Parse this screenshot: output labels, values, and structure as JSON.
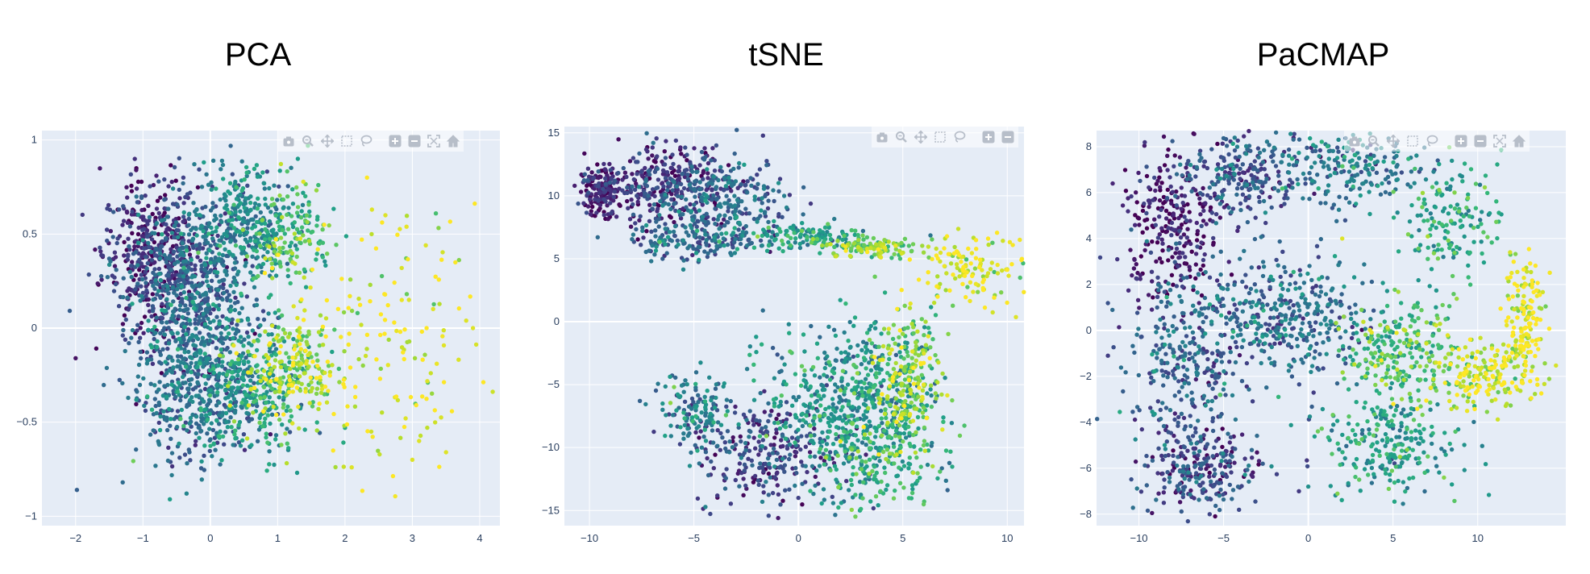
{
  "chart_data": [
    {
      "type": "scatter",
      "title": "PCA",
      "xlim": [
        -2.5,
        4.3
      ],
      "ylim": [
        -1.05,
        1.05
      ],
      "xticks": [
        -2,
        -1,
        0,
        1,
        2,
        3,
        4
      ],
      "xtick_labels": [
        "−2",
        "−1",
        "0",
        "1",
        "2",
        "3",
        "4"
      ],
      "yticks": [
        -1,
        -0.5,
        0,
        0.5,
        1
      ],
      "ytick_labels": [
        "−1",
        "−0.5",
        "0",
        "0.5",
        "1"
      ],
      "colorscale": "Viridis",
      "grid": true,
      "marker_size_px": 5,
      "point_count": 2600,
      "points": [
        [
          -1.1,
          0.84,
          0.05
        ],
        [
          -0.8,
          0.81,
          0.1
        ],
        [
          -0.4,
          0.8,
          0.2
        ],
        [
          1.3,
          0.9,
          0.55
        ],
        [
          1.45,
          0.97,
          0.7
        ],
        [
          -2.0,
          -0.16,
          0.05
        ],
        [
          -1.98,
          -0.86,
          0.3
        ],
        [
          -0.6,
          -0.91,
          0.55
        ],
        [
          -1.3,
          -0.82,
          0.35
        ],
        [
          2.1,
          -0.74,
          0.95
        ],
        [
          2.0,
          -0.53,
          0.6
        ],
        [
          2.9,
          -0.48,
          0.95
        ],
        [
          3.1,
          -0.6,
          0.95
        ],
        [
          3.5,
          -0.66,
          0.95
        ],
        [
          3.9,
          0.0,
          0.95
        ],
        [
          3.8,
          0.04,
          0.95
        ],
        [
          3.35,
          0.61,
          0.7
        ],
        [
          3.2,
          0.44,
          0.95
        ],
        [
          2.6,
          0.6,
          0.95
        ],
        [
          2.4,
          0.63,
          0.95
        ],
        [
          2.95,
          0.15,
          0.95
        ],
        [
          3.0,
          -0.7,
          0.95
        ],
        [
          0.25,
          0.16,
          0.3
        ],
        [
          -0.3,
          -0.3,
          0.4
        ],
        [
          0.6,
          0.7,
          0.5
        ]
      ]
    },
    {
      "type": "scatter",
      "title": "tSNE",
      "xlim": [
        -11.2,
        10.8
      ],
      "ylim": [
        -16.2,
        15.5
      ],
      "xticks": [
        -10,
        -5,
        0,
        5,
        10
      ],
      "xtick_labels": [
        "−10",
        "−5",
        "0",
        "5",
        "10"
      ],
      "yticks": [
        -15,
        -10,
        -5,
        0,
        5,
        10,
        15
      ],
      "ytick_labels": [
        "−15",
        "−10",
        "−5",
        "0",
        "5",
        "10",
        "15"
      ],
      "colorscale": "Viridis",
      "grid": true,
      "marker_size_px": 5,
      "point_count": 2600,
      "points": [
        [
          -10.0,
          11.0,
          0.02
        ],
        [
          -7.0,
          13.2,
          0.05
        ],
        [
          -4.0,
          12.0,
          0.2
        ],
        [
          -6.5,
          5.0,
          0.3
        ],
        [
          1.0,
          6.5,
          0.6
        ],
        [
          3.5,
          6.0,
          0.8
        ],
        [
          6.0,
          5.5,
          0.85
        ],
        [
          10.6,
          6.5,
          0.98
        ],
        [
          8.5,
          3.0,
          0.97
        ],
        [
          6.5,
          1.5,
          0.9
        ],
        [
          -6.5,
          -7.0,
          0.45
        ],
        [
          -5.5,
          -5.0,
          0.35
        ],
        [
          -1.0,
          -13.0,
          0.1
        ],
        [
          0.0,
          -14.0,
          0.2
        ],
        [
          6.0,
          -14.5,
          0.75
        ],
        [
          6.0,
          -5.0,
          0.97
        ],
        [
          2.5,
          -2.0,
          0.5
        ],
        [
          4.0,
          -3.0,
          0.65
        ],
        [
          -2.5,
          -10.0,
          0.15
        ],
        [
          5.5,
          -12.0,
          0.9
        ]
      ]
    },
    {
      "type": "scatter",
      "title": "PaCMAP",
      "xlim": [
        -12.5,
        15.2
      ],
      "ylim": [
        -8.5,
        8.7
      ],
      "xticks": [
        -10,
        -5,
        0,
        5,
        10
      ],
      "xtick_labels": [
        "−10",
        "−5",
        "0",
        "5",
        "10"
      ],
      "yticks": [
        -8,
        -6,
        -4,
        -2,
        0,
        2,
        4,
        6,
        8
      ],
      "ytick_labels": [
        "−8",
        "−6",
        "−4",
        "−2",
        "0",
        "2",
        "4",
        "6",
        "8"
      ],
      "colorscale": "Viridis",
      "grid": true,
      "marker_size_px": 5,
      "point_count": 2600,
      "points": [
        [
          -10.5,
          3.5,
          0.05
        ],
        [
          -8.0,
          5.0,
          0.05
        ],
        [
          -5.0,
          7.5,
          0.2
        ],
        [
          -2.0,
          7.9,
          0.3
        ],
        [
          3.0,
          7.5,
          0.45
        ],
        [
          9.0,
          4.5,
          0.6
        ],
        [
          12.0,
          2.5,
          0.97
        ],
        [
          13.5,
          1.5,
          0.97
        ],
        [
          12.5,
          -0.8,
          0.97
        ],
        [
          9.5,
          -2.5,
          0.95
        ],
        [
          5.0,
          -5.5,
          0.55
        ],
        [
          -4.5,
          -5.5,
          0.35
        ],
        [
          -8.5,
          -6.5,
          0.2
        ],
        [
          -6.0,
          -7.3,
          0.35
        ],
        [
          0.0,
          -6.8,
          0.5
        ],
        [
          3.0,
          -6.5,
          0.75
        ],
        [
          4.0,
          -0.5,
          0.6
        ],
        [
          -2.0,
          1.0,
          0.35
        ],
        [
          -7.0,
          -1.0,
          0.25
        ],
        [
          2.0,
          4.0,
          0.95
        ]
      ]
    }
  ],
  "colors": {
    "plot_bg": "#e5ecf6",
    "grid": "#ffffff",
    "tick_text": "#2a3f5f",
    "modebar_icon": "#b7bec9",
    "viridis_stops": [
      "#440154",
      "#482878",
      "#3e4989",
      "#31688e",
      "#26828e",
      "#1f9e89",
      "#35b779",
      "#6ece58",
      "#b5de2b",
      "#fde725"
    ]
  },
  "modebar_icons": [
    "camera-icon",
    "zoom-icon",
    "pan-icon",
    "box-select-icon",
    "lasso-select-icon",
    "zoom-in-icon",
    "zoom-out-icon",
    "autoscale-icon",
    "reset-axes-icon"
  ]
}
